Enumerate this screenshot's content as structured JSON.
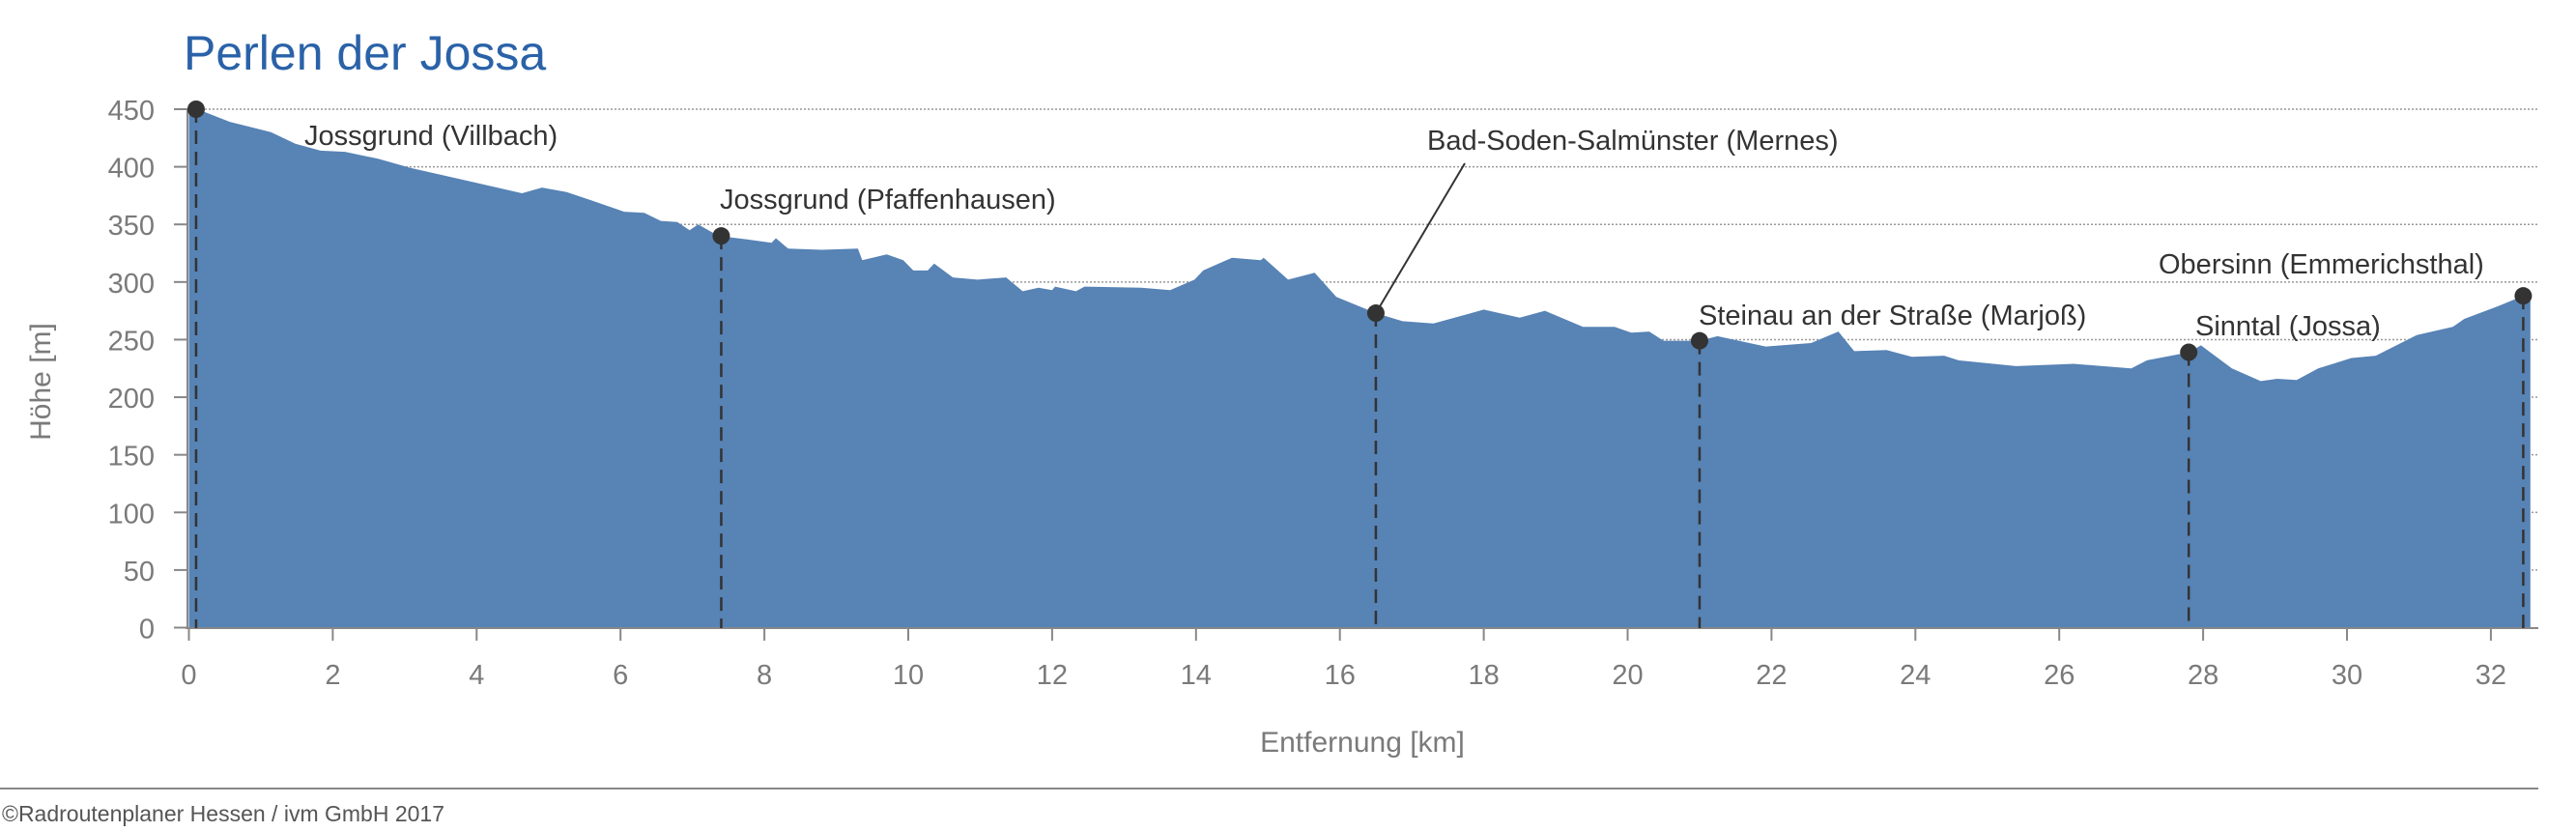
{
  "chart_data": {
    "type": "area",
    "title": "Perlen der Jossa",
    "xlabel": "Entfernung [km]",
    "ylabel": "Höhe [m]",
    "xlim": [
      0,
      32.6
    ],
    "ylim": [
      0,
      450
    ],
    "xticks": [
      0,
      2,
      4,
      6,
      8,
      10,
      12,
      14,
      16,
      18,
      20,
      22,
      24,
      26,
      28,
      30,
      32
    ],
    "yticks": [
      0,
      50,
      100,
      150,
      200,
      250,
      300,
      350,
      400,
      450
    ],
    "grid": "horizontal dotted",
    "legend": "none",
    "fill_color": "#5783b5",
    "profile": [
      [
        0,
        450
      ],
      [
        0.12,
        450
      ],
      [
        0.57,
        439
      ],
      [
        1.14,
        430
      ],
      [
        1.48,
        420
      ],
      [
        1.83,
        414
      ],
      [
        2.17,
        413
      ],
      [
        2.63,
        407
      ],
      [
        3.08,
        399
      ],
      [
        4.0,
        386
      ],
      [
        4.63,
        377
      ],
      [
        4.91,
        382
      ],
      [
        5.25,
        378
      ],
      [
        5.59,
        371
      ],
      [
        6.05,
        361
      ],
      [
        6.33,
        360
      ],
      [
        6.56,
        353
      ],
      [
        6.79,
        352
      ],
      [
        6.96,
        345
      ],
      [
        7.08,
        350
      ],
      [
        7.36,
        340
      ],
      [
        7.76,
        337
      ],
      [
        8.1,
        334
      ],
      [
        8.16,
        338
      ],
      [
        8.33,
        329
      ],
      [
        8.8,
        328
      ],
      [
        9.3,
        329
      ],
      [
        9.36,
        319
      ],
      [
        9.7,
        324
      ],
      [
        9.93,
        319
      ],
      [
        10.07,
        310
      ],
      [
        10.27,
        310
      ],
      [
        10.36,
        316
      ],
      [
        10.62,
        304
      ],
      [
        10.96,
        302
      ],
      [
        11.36,
        304
      ],
      [
        11.59,
        292
      ],
      [
        11.81,
        295
      ],
      [
        12.0,
        293
      ],
      [
        12.04,
        296
      ],
      [
        12.33,
        292
      ],
      [
        12.45,
        296
      ],
      [
        13.24,
        295
      ],
      [
        13.64,
        293
      ],
      [
        13.98,
        302
      ],
      [
        14.1,
        310
      ],
      [
        14.5,
        321
      ],
      [
        14.9,
        319
      ],
      [
        14.94,
        321
      ],
      [
        15.28,
        302
      ],
      [
        15.65,
        308
      ],
      [
        15.95,
        287
      ],
      [
        16.5,
        273
      ],
      [
        16.87,
        266
      ],
      [
        17.3,
        264
      ],
      [
        18.0,
        276
      ],
      [
        18.5,
        269
      ],
      [
        18.85,
        275
      ],
      [
        19.38,
        261
      ],
      [
        19.82,
        261
      ],
      [
        20.05,
        256
      ],
      [
        20.3,
        257
      ],
      [
        20.5,
        249
      ],
      [
        21.0,
        249
      ],
      [
        21.25,
        253
      ],
      [
        21.92,
        244
      ],
      [
        22.55,
        247
      ],
      [
        22.93,
        257
      ],
      [
        23.15,
        240
      ],
      [
        23.6,
        241
      ],
      [
        23.95,
        235
      ],
      [
        24.4,
        236
      ],
      [
        24.6,
        232
      ],
      [
        25.4,
        227
      ],
      [
        26.2,
        229
      ],
      [
        27.0,
        225
      ],
      [
        27.22,
        232
      ],
      [
        27.8,
        239
      ],
      [
        27.97,
        245
      ],
      [
        28.4,
        225
      ],
      [
        28.8,
        214
      ],
      [
        29.03,
        216
      ],
      [
        29.3,
        215
      ],
      [
        29.6,
        225
      ],
      [
        30.06,
        234
      ],
      [
        30.4,
        236
      ],
      [
        30.97,
        254
      ],
      [
        31.47,
        261
      ],
      [
        31.63,
        268
      ],
      [
        32.1,
        279
      ],
      [
        32.45,
        288
      ],
      [
        32.55,
        291
      ]
    ],
    "places": [
      {
        "name": "Jossgrund (Villbach)",
        "km": 0.1,
        "elevation": 450
      },
      {
        "name": "Jossgrund (Pfaffenhausen)",
        "km": 7.4,
        "elevation": 340
      },
      {
        "name": "Bad-Soden-Salmünster (Mernes)",
        "km": 16.5,
        "elevation": 273
      },
      {
        "name": "Steinau an der Straße (Marjoß)",
        "km": 21.0,
        "elevation": 249
      },
      {
        "name": "Sinntal (Jossa)",
        "km": 27.8,
        "elevation": 239
      },
      {
        "name": "Obersinn (Emmerichsthal)",
        "km": 32.45,
        "elevation": 288
      }
    ]
  },
  "footer": {
    "copyright": "©Radroutenplaner Hessen / ivm GmbH 2017"
  }
}
